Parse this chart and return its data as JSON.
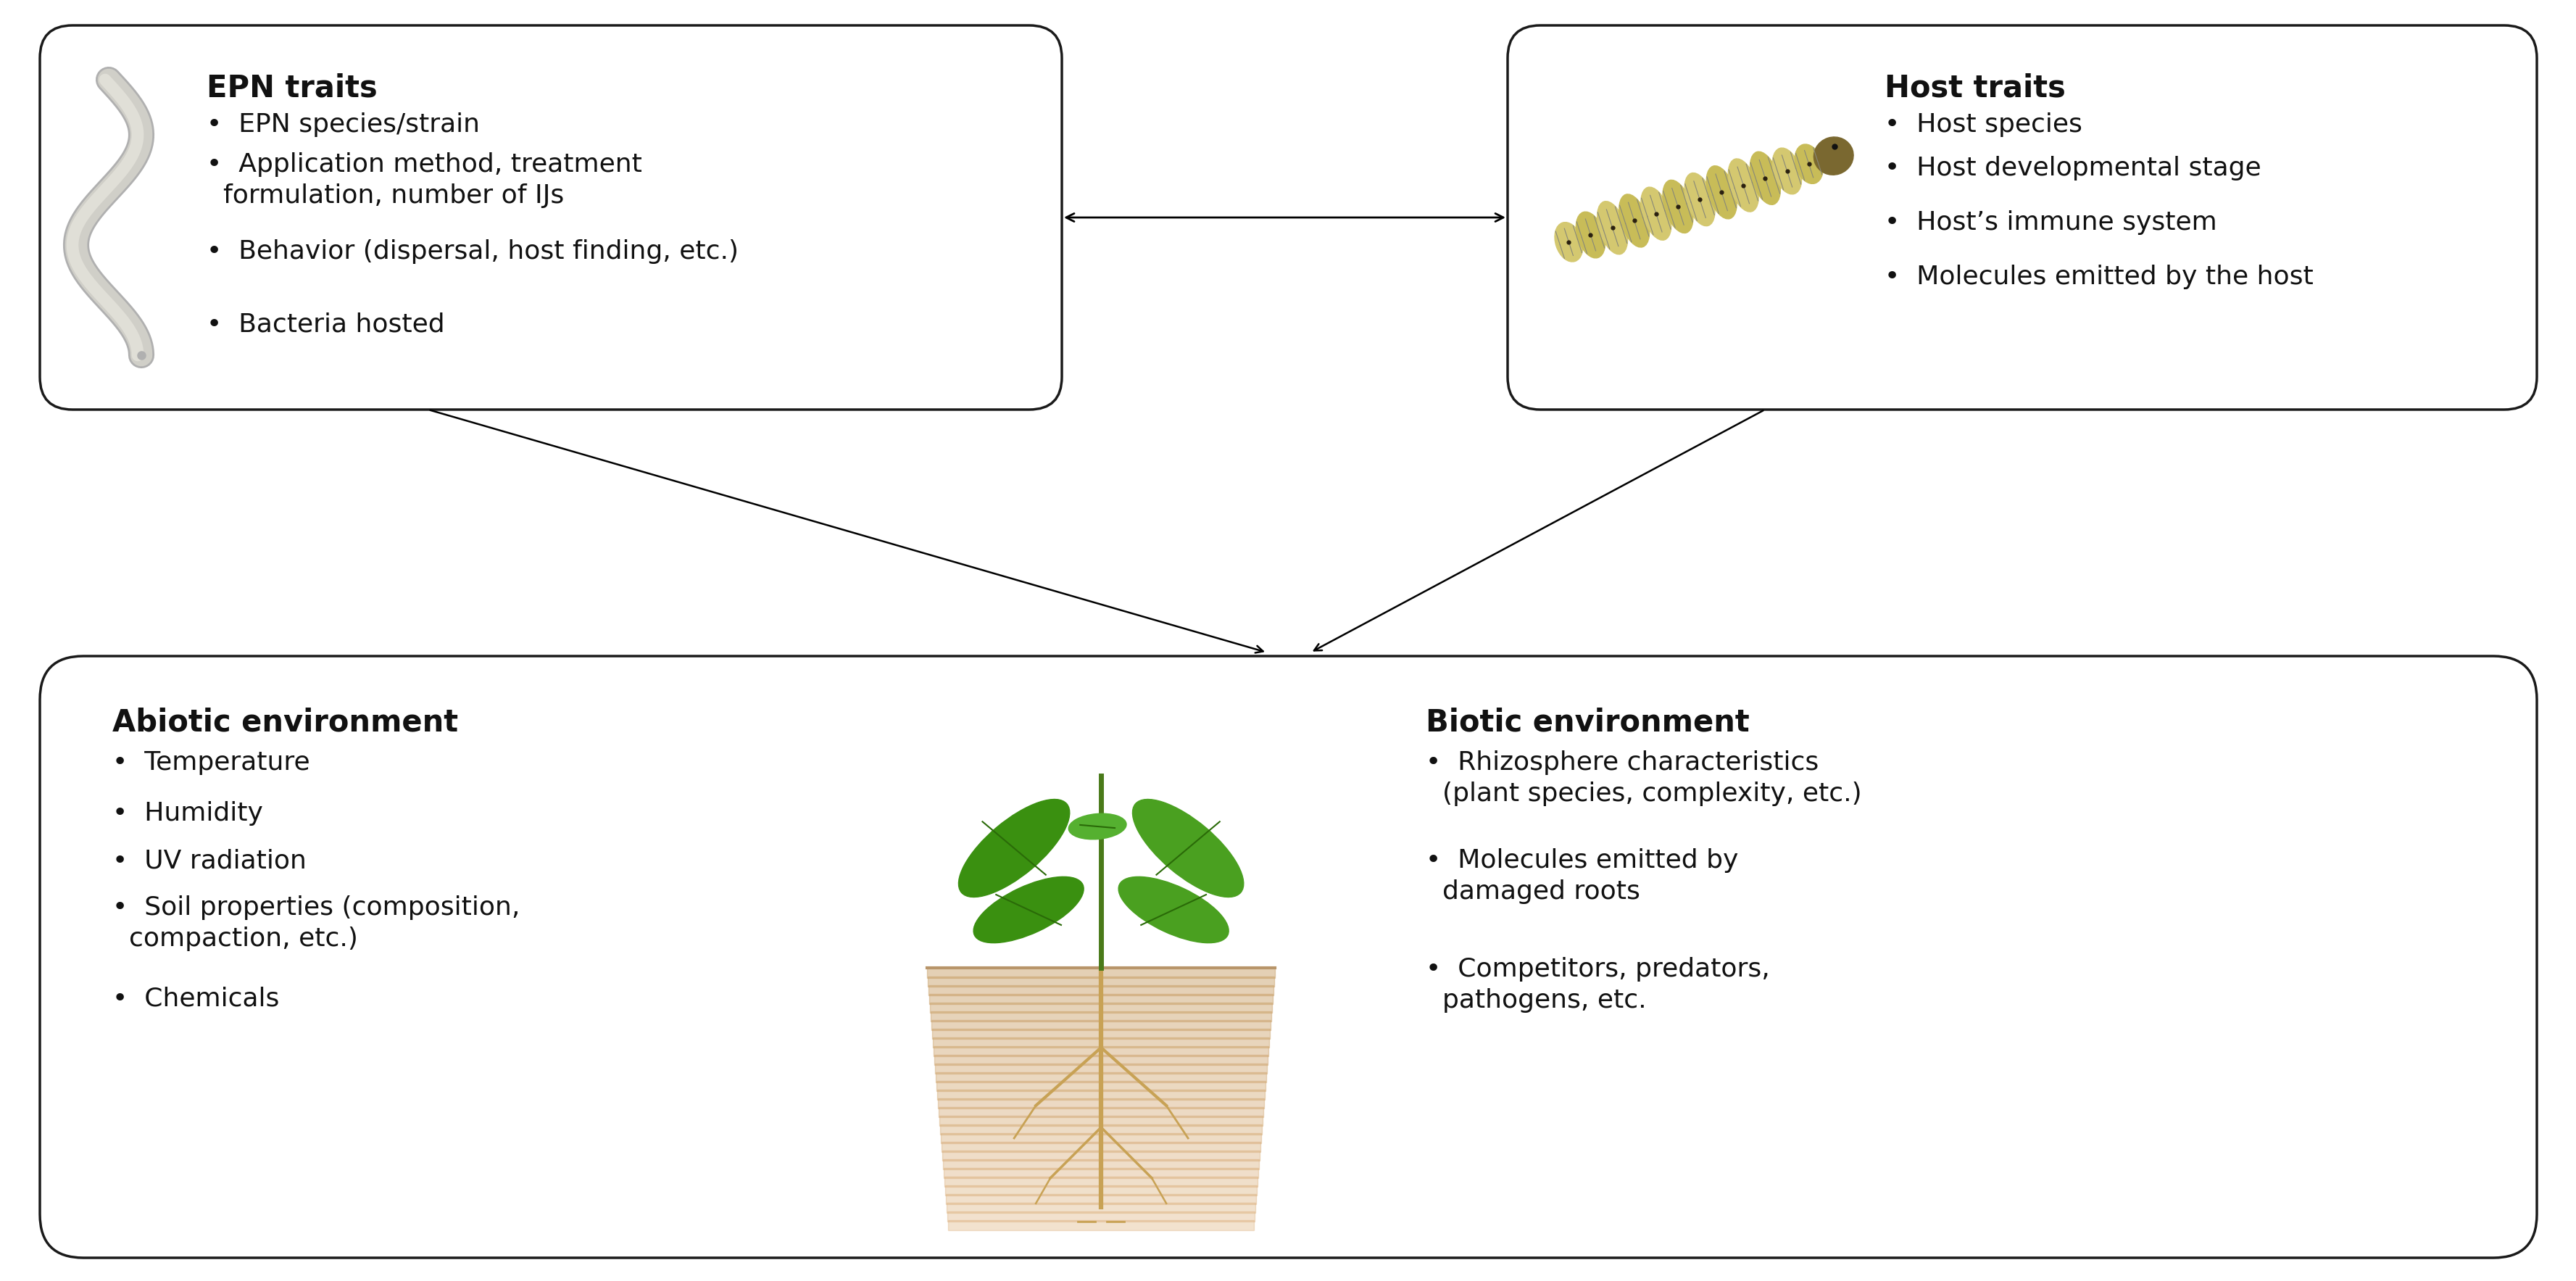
{
  "epn_title": "EPN traits",
  "epn_bullets": [
    "EPN species/strain",
    "Application method, treatment\n  formulation, number of IJs",
    "Behavior (dispersal, host finding, etc.)",
    "Bacteria hosted"
  ],
  "host_title": "Host traits",
  "host_bullets": [
    "Host species",
    "Host developmental stage",
    "Host’s immune system",
    "Molecules emitted by the host"
  ],
  "env_title_left": "Abiotic environment",
  "env_bullets_left": [
    "Temperature",
    "Humidity",
    "UV radiation",
    "Soil properties (composition,\n  compaction, etc.)",
    "Chemicals"
  ],
  "env_title_right": "Biotic environment",
  "env_bullets_right": [
    "Rhizosphere characteristics\n  (plant species, complexity, etc.)",
    "Molecules emitted by\n  damaged roots",
    "Competitors, predators,\n  pathogens, etc."
  ],
  "bg_color": "#ffffff",
  "box_edge_color": "#1a1a1a",
  "text_color": "#111111",
  "title_fontsize": 30,
  "bullet_fontsize": 26
}
